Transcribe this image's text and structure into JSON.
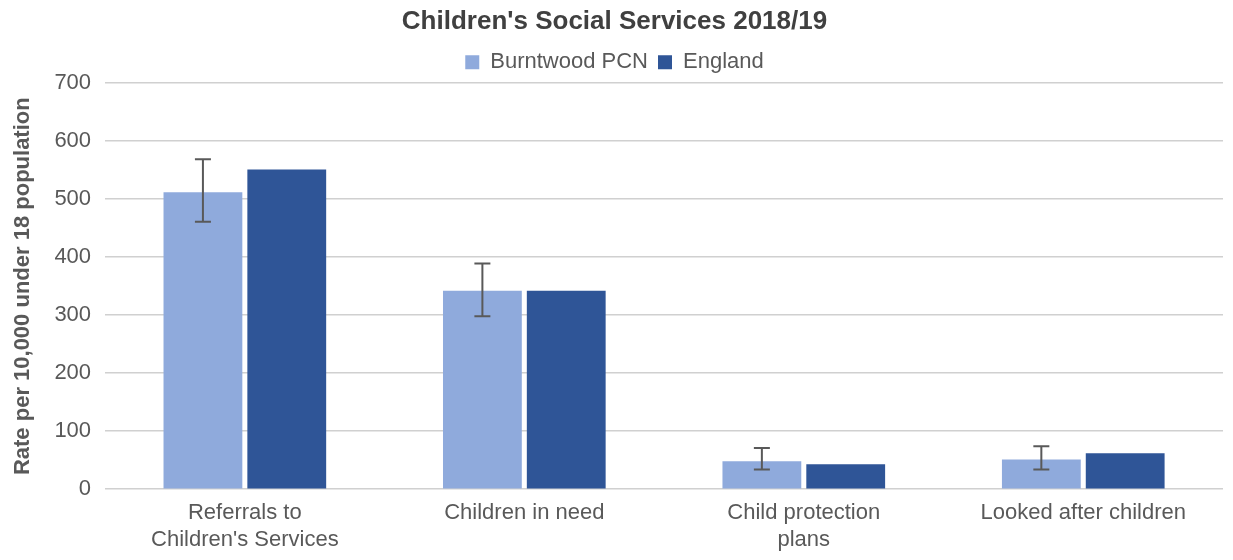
{
  "chart_data": {
    "type": "bar",
    "title": "Children's Social Services 2018/19",
    "ylabel": "Rate per 10,000 under 18 population",
    "categories": [
      "Referrals to\nChildren's Services",
      "Children in need",
      "Child protection\nplans",
      "Looked after children"
    ],
    "series": [
      {
        "name": "Burntwood PCN",
        "color": "#8faadc",
        "values": [
          512,
          342,
          48,
          51
        ],
        "errors": [
          [
            461,
            569
          ],
          [
            298,
            389
          ],
          [
            34,
            71
          ],
          [
            34,
            74
          ]
        ]
      },
      {
        "name": "England",
        "color": "#2f5597",
        "values": [
          551,
          342,
          43,
          62
        ]
      }
    ],
    "ylim": [
      0,
      700
    ],
    "yticks": [
      0,
      100,
      200,
      300,
      400,
      500,
      600,
      700
    ],
    "grid": "y",
    "legend": "top"
  }
}
